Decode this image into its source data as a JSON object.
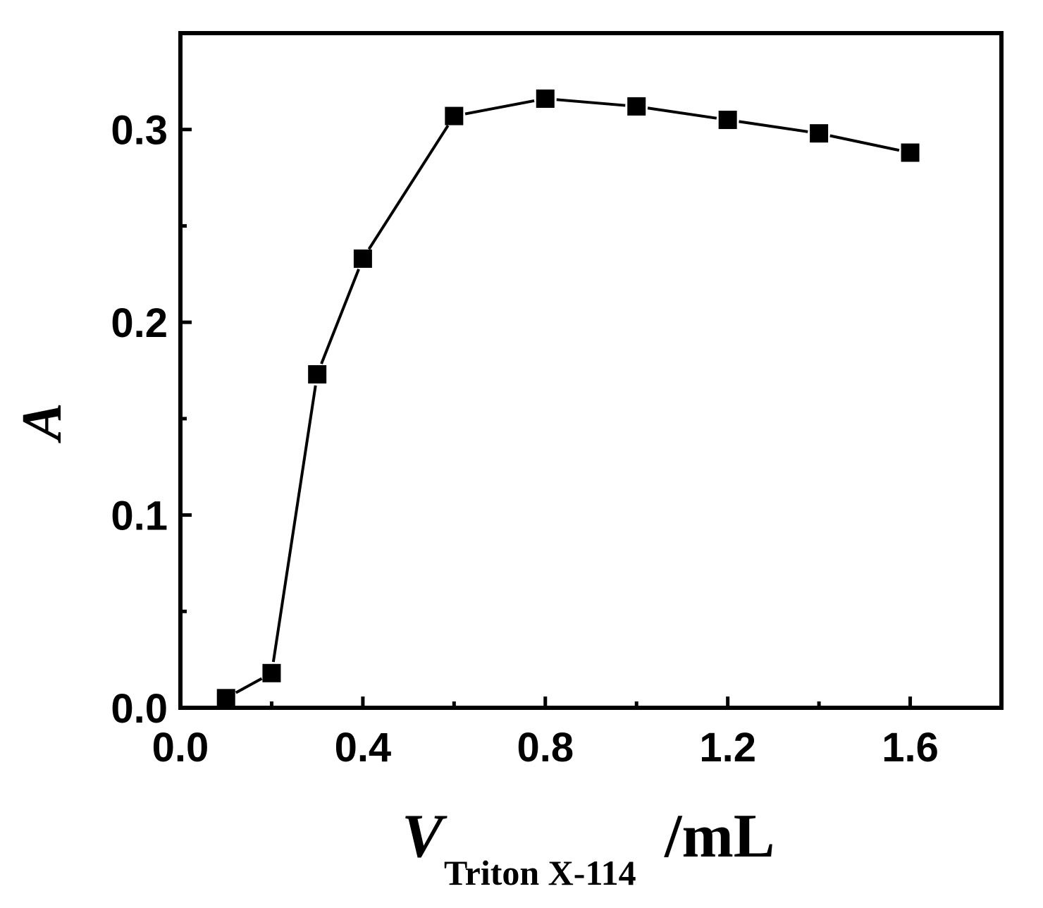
{
  "chart_data": {
    "type": "line",
    "title": "",
    "xlabel": {
      "symbol": "V",
      "subscript": "Triton X-114",
      "unit": "/mL"
    },
    "ylabel": "A",
    "xlim": [
      0.0,
      1.8
    ],
    "ylim": [
      0.0,
      0.35
    ],
    "xticks": [
      0.0,
      0.4,
      0.8,
      1.2,
      1.6
    ],
    "xtick_labels": [
      "0.0",
      "0.4",
      "0.8",
      "1.2",
      "1.6"
    ],
    "xminor_ticks": [
      0.2,
      0.6,
      1.0,
      1.4
    ],
    "yticks": [
      0.0,
      0.1,
      0.2,
      0.3
    ],
    "ytick_labels": [
      "0.0",
      "0.1",
      "0.2",
      "0.3"
    ],
    "yminor_ticks": [
      0.05,
      0.15,
      0.25
    ],
    "grid": false,
    "legend": "none",
    "series": [
      {
        "marker": "square",
        "color": "#000000",
        "x": [
          0.1,
          0.2,
          0.3,
          0.4,
          0.6,
          0.8,
          1.0,
          1.2,
          1.4,
          1.6
        ],
        "y": [
          0.005,
          0.018,
          0.173,
          0.233,
          0.307,
          0.316,
          0.312,
          0.305,
          0.298,
          0.288
        ]
      }
    ]
  }
}
